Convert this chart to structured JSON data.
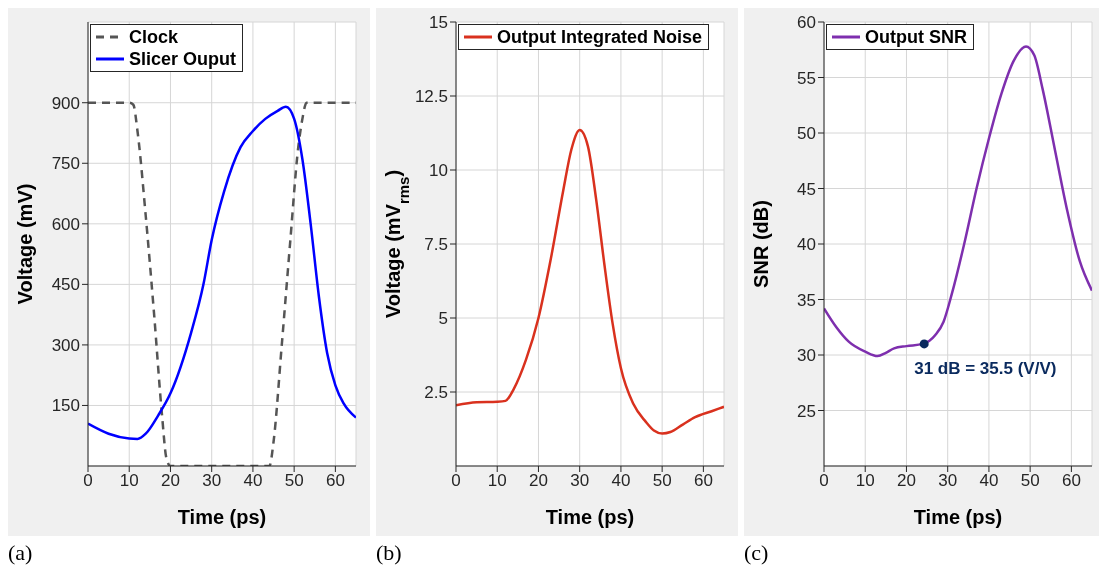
{
  "chart_data": [
    {
      "type": "line",
      "xlabel": "Time (ps)",
      "ylabel": "Voltage (mV)",
      "xlim": [
        0,
        65
      ],
      "xticks": [
        0,
        10,
        20,
        30,
        40,
        50,
        60
      ],
      "ylim": [
        0,
        1100
      ],
      "yticks": [
        150,
        300,
        450,
        600,
        750,
        900
      ],
      "grid": true,
      "legend": "top left",
      "annotations": [
        "(a)"
      ],
      "series": [
        {
          "name": "Clock",
          "color": "#555555",
          "line_style": "dashed",
          "x": [
            0,
            10,
            11,
            12,
            14,
            16,
            18,
            19,
            20,
            44,
            45,
            47,
            49,
            51,
            52,
            53,
            54,
            65
          ],
          "values": [
            900,
            900,
            895,
            830,
            620,
            380,
            120,
            20,
            0,
            0,
            60,
            300,
            550,
            790,
            860,
            900,
            900,
            900
          ]
        },
        {
          "name": "Slicer Ouput",
          "color": "#0000ff",
          "line_style": "solid",
          "x": [
            0,
            5,
            10,
            12,
            14,
            17,
            20,
            25,
            28,
            30,
            33,
            37,
            40,
            43,
            46,
            48,
            50,
            52,
            54,
            56,
            58,
            60,
            62,
            65
          ],
          "values": [
            105,
            80,
            68,
            67,
            80,
            125,
            180,
            330,
            450,
            560,
            680,
            790,
            830,
            860,
            880,
            890,
            860,
            760,
            600,
            420,
            280,
            200,
            155,
            120
          ]
        }
      ]
    },
    {
      "type": "line",
      "xlabel": "Time (ps)",
      "ylabel": "Voltage (mV$_{rms}$)",
      "xlim": [
        0,
        65
      ],
      "xticks": [
        0,
        10,
        20,
        30,
        40,
        50,
        60
      ],
      "ylim": [
        0,
        15
      ],
      "yticks": [
        2.5,
        5,
        7.5,
        10,
        12.5,
        15
      ],
      "grid": true,
      "legend": "top left",
      "annotations": [
        "(b)"
      ],
      "series": [
        {
          "name": "Output Integrated Noise",
          "color": "#d9311e",
          "line_style": "solid",
          "x": [
            0,
            5,
            10,
            12,
            14,
            17,
            20,
            23,
            26,
            28,
            30,
            32,
            34,
            36,
            38,
            40,
            43,
            46,
            48,
            50,
            52,
            55,
            58,
            62,
            65
          ],
          "values": [
            2.05,
            2.15,
            2.17,
            2.2,
            2.6,
            3.6,
            5.0,
            7.0,
            9.3,
            10.7,
            11.35,
            10.8,
            9.0,
            6.8,
            4.8,
            3.3,
            2.1,
            1.5,
            1.2,
            1.1,
            1.15,
            1.4,
            1.65,
            1.85,
            2.0
          ]
        }
      ]
    },
    {
      "type": "line",
      "xlabel": "Time (ps)",
      "ylabel": "SNR (dB)",
      "xlim": [
        0,
        65
      ],
      "xticks": [
        0,
        10,
        20,
        30,
        40,
        50,
        60
      ],
      "ylim": [
        20,
        60
      ],
      "yticks": [
        25,
        30,
        35,
        40,
        45,
        50,
        55,
        60
      ],
      "grid": true,
      "legend": "top left",
      "annotations": [
        {
          "text": "31 dB = 35.5 (V/V)",
          "x": 24.3,
          "y": 31
        },
        "(c)"
      ],
      "series": [
        {
          "name": "Output SNR",
          "color": "#7e2fae",
          "line_style": "solid",
          "x": [
            0,
            3,
            6,
            10,
            13,
            15,
            17,
            20,
            24,
            27,
            29,
            31,
            34,
            37,
            40,
            43,
            46,
            49,
            51,
            53,
            56,
            59,
            62,
            65
          ],
          "values": [
            34.2,
            32.5,
            31.2,
            30.3,
            29.9,
            30.2,
            30.6,
            30.8,
            31.0,
            31.8,
            33,
            35.5,
            40,
            45,
            49.5,
            53.5,
            56.5,
            57.8,
            57,
            54,
            48.5,
            43,
            38.5,
            35.8
          ]
        },
        {
          "type": "scatter",
          "color": "#0a2a5e",
          "marker": "circle",
          "x": [
            24.3
          ],
          "values": [
            31
          ]
        }
      ]
    }
  ]
}
